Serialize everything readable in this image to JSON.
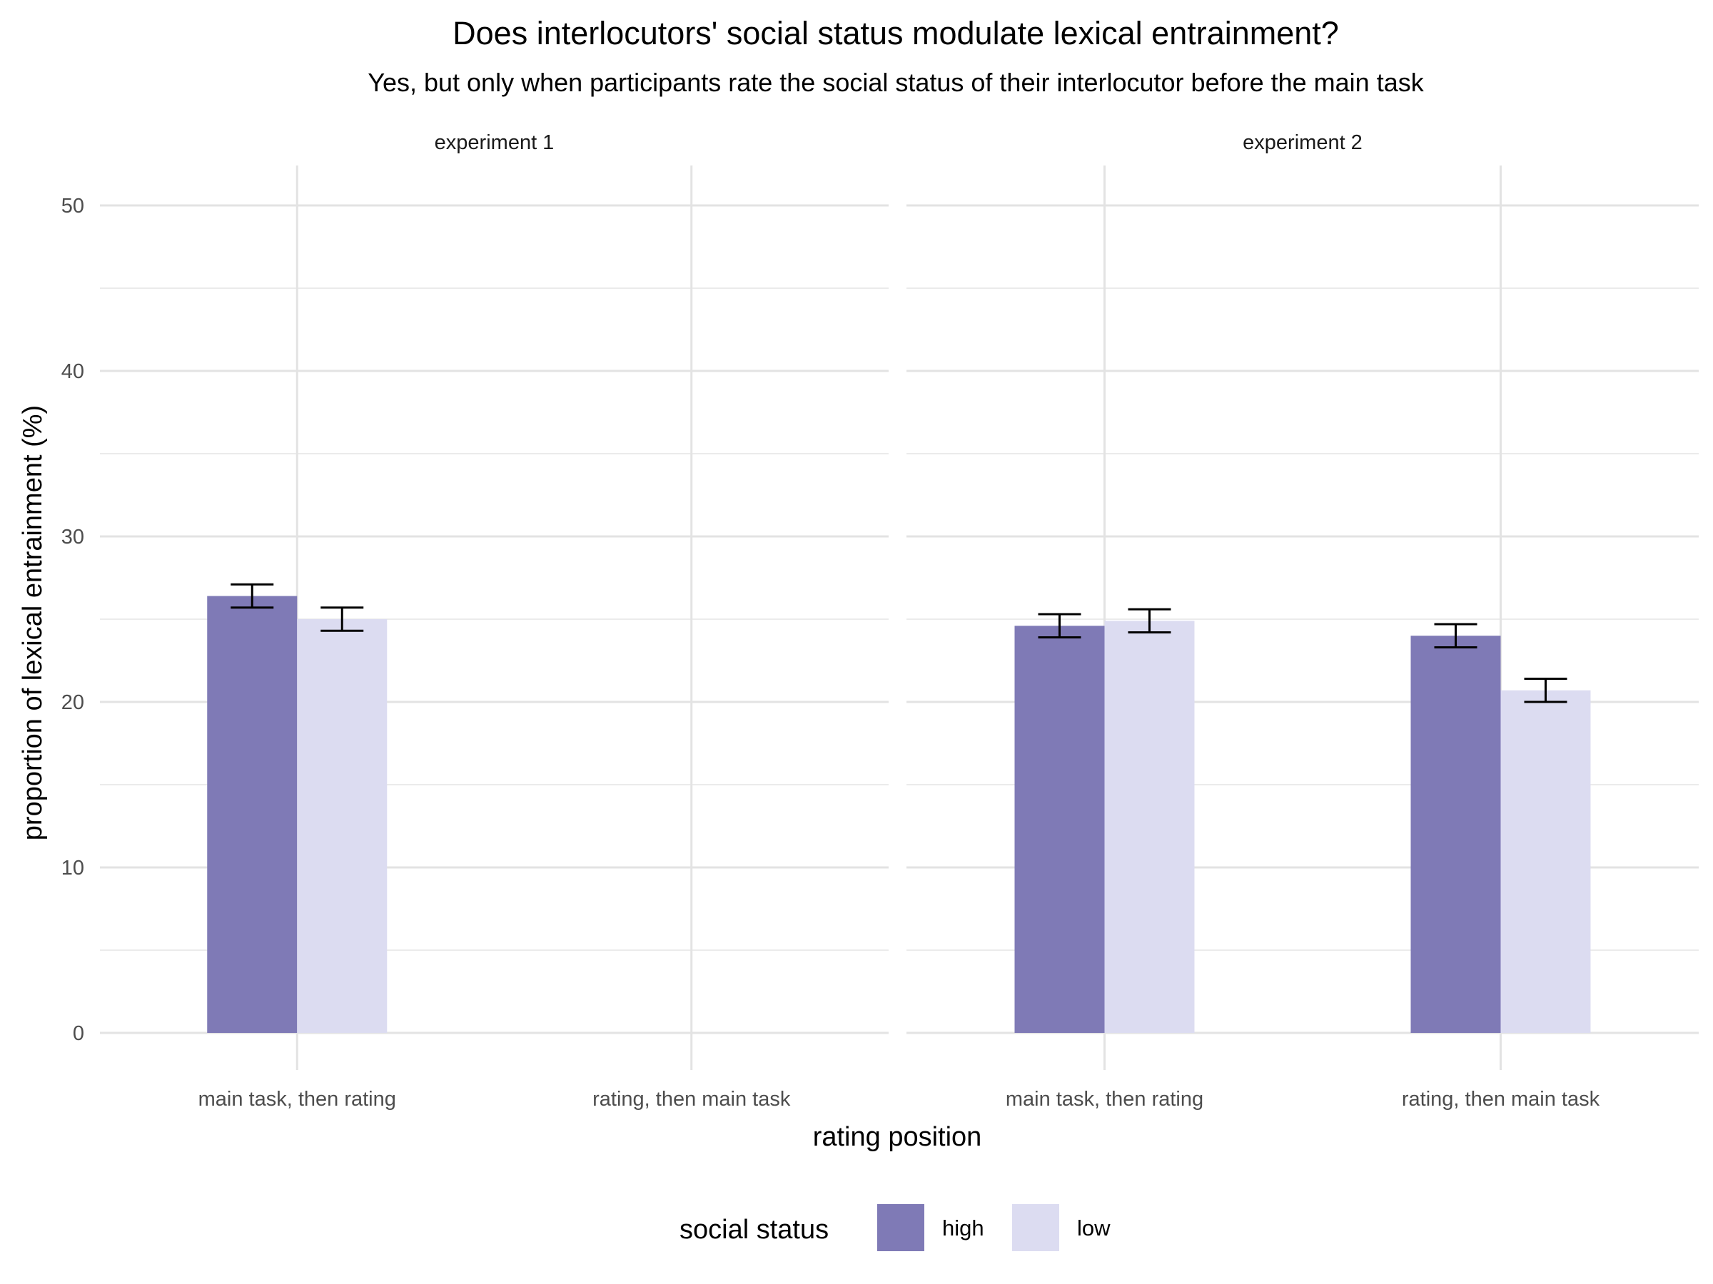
{
  "chart_data": {
    "type": "bar",
    "title": "Does interlocutors' social status modulate lexical entrainment?",
    "subtitle": "Yes, but only when participants rate the social status of their interlocutor before the main task",
    "xlabel": "rating position",
    "ylabel": "proportion of lexical entrainment (%)",
    "ylim": [
      0,
      52
    ],
    "yticks": [
      0,
      10,
      20,
      30,
      40,
      50
    ],
    "categories": [
      "main task, then rating",
      "rating, then main task"
    ],
    "grid": true,
    "legend": {
      "title": "social status",
      "position": "bottom",
      "entries": [
        "high",
        "low"
      ]
    },
    "colors": {
      "high": "#7f7ab6",
      "low": "#dcdcf1"
    },
    "facets": [
      {
        "label": "experiment 1",
        "series": [
          {
            "name": "high",
            "values": [
              26.4,
              null
            ],
            "error_low": [
              25.7,
              null
            ],
            "error_high": [
              27.1,
              null
            ]
          },
          {
            "name": "low",
            "values": [
              25.0,
              null
            ],
            "error_low": [
              24.3,
              null
            ],
            "error_high": [
              25.7,
              null
            ]
          }
        ]
      },
      {
        "label": "experiment 2",
        "series": [
          {
            "name": "high",
            "values": [
              24.6,
              24.0
            ],
            "error_low": [
              23.9,
              23.3
            ],
            "error_high": [
              25.3,
              24.7
            ]
          },
          {
            "name": "low",
            "values": [
              24.9,
              20.7
            ],
            "error_low": [
              24.2,
              20.0
            ],
            "error_high": [
              25.6,
              21.4
            ]
          }
        ]
      }
    ]
  }
}
